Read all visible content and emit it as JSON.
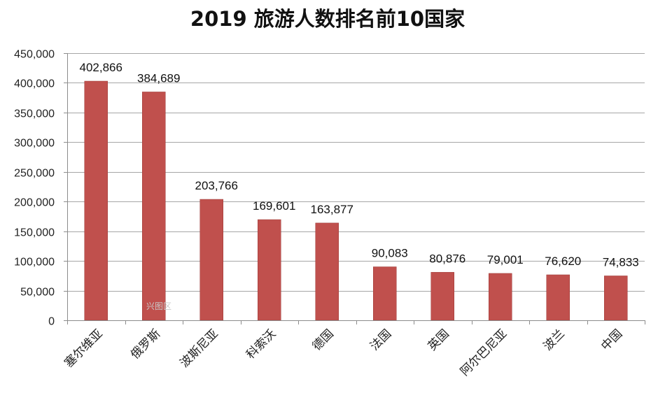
{
  "chart_data": {
    "type": "bar",
    "title": "2019 旅游人数排名前10国家",
    "categories": [
      "塞尔维亚",
      "俄罗斯",
      "波斯尼亚",
      "科索沃",
      "德国",
      "法国",
      "英国",
      "阿尔巴尼亚",
      "波兰",
      "中国"
    ],
    "series": [
      {
        "values": [
          402866,
          384689,
          203766,
          169601,
          163877,
          90083,
          80876,
          79001,
          76620,
          74833
        ]
      }
    ],
    "data_labels": [
      "402,866",
      "384,689",
      "203,766",
      "169,601",
      "163,877",
      "90,083",
      "80,876",
      "79,001",
      "76,620",
      "74,833"
    ],
    "ylim": [
      0,
      450000
    ],
    "yticks": [
      0,
      50000,
      100000,
      150000,
      200000,
      250000,
      300000,
      350000,
      400000,
      450000
    ],
    "ytick_labels": [
      "0",
      "50,000",
      "100,000",
      "150,000",
      "200,000",
      "250,000",
      "300,000",
      "350,000",
      "400,000",
      "450,000"
    ],
    "xlabel": "",
    "ylabel": "",
    "grid": true,
    "legend": "none",
    "bar_color": "#c0504d",
    "watermark": "兴图区"
  }
}
